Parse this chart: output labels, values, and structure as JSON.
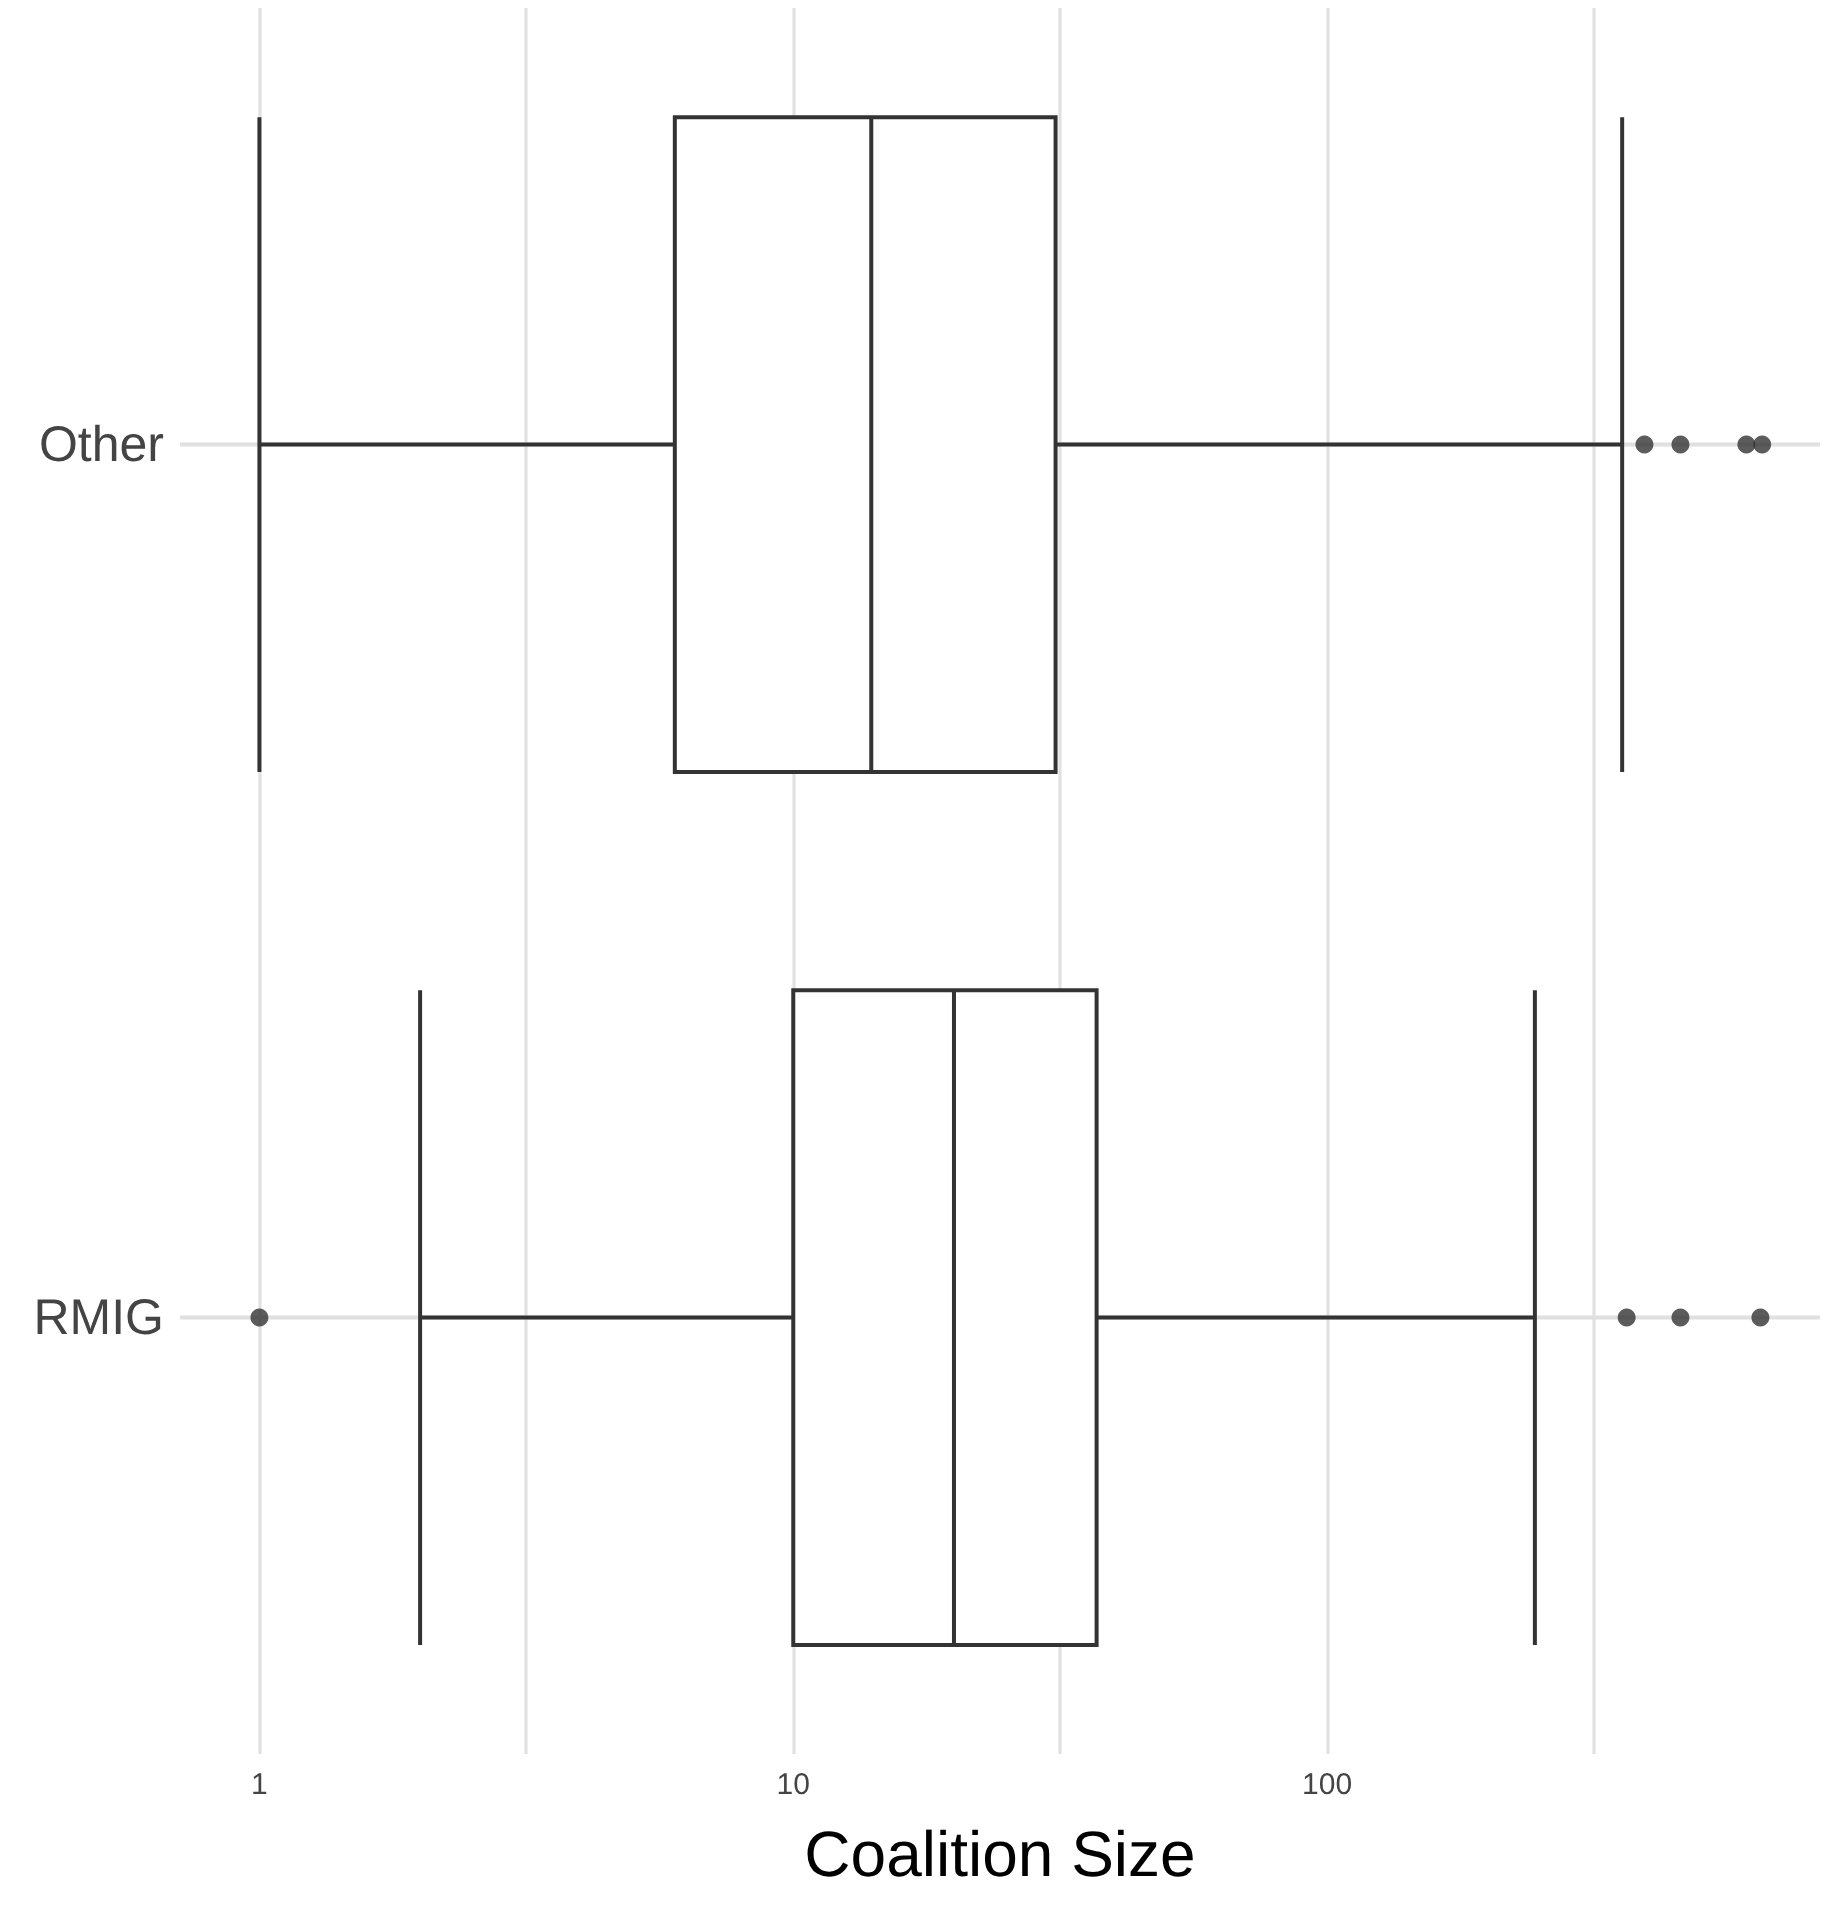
{
  "chart_data": {
    "type": "box",
    "orientation": "horizontal",
    "xlabel": "Coalition Size",
    "categories": [
      "Other",
      "RMIG"
    ],
    "log": "x",
    "grid": true,
    "xlim": [
      0.71,
      838
    ],
    "xticks": [
      1,
      {
        "value": 3.16,
        "label": null
      },
      10,
      {
        "value": 31.6,
        "label": null
      },
      100,
      {
        "value": 316,
        "label": null
      }
    ],
    "boxes": [
      {
        "low": 1,
        "q1": 6,
        "median": 14,
        "q3": 31,
        "high": 357,
        "outliers": [
          393,
          459,
          610,
          653
        ]
      },
      {
        "low": 2,
        "q1": 10,
        "median": 20,
        "q3": 37,
        "high": 245,
        "outliers": [
          1,
          364,
          459,
          648
        ]
      }
    ],
    "color": "#333333"
  }
}
